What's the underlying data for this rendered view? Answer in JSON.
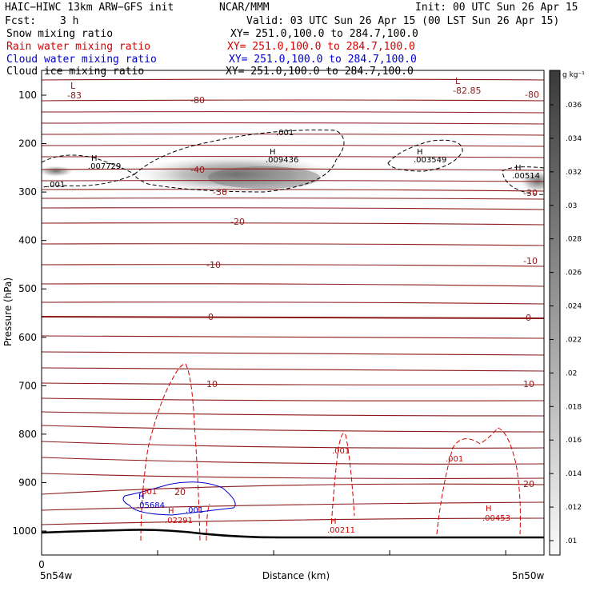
{
  "header": {
    "model": "HAIC−HIWC 13km ARW−GFS init",
    "org": "NCAR/MMM",
    "init": "Init: 00 UTC Sun 26 Apr 15",
    "fcst_label": "Fcst:",
    "fcst_value": "3 h",
    "valid": "Valid: 03 UTC Sun 26 Apr 15 (00 LST Sun 26 Apr 15)"
  },
  "fields": [
    {
      "name": "Snow mixing ratio",
      "xy": "XY= 251.0,100.0 to 284.7,100.0",
      "color": "#000000"
    },
    {
      "name": "Rain water mixing ratio",
      "xy": "XY= 251.0,100.0 to 284.7,100.0",
      "color": "#d40000"
    },
    {
      "name": "Cloud water mixing ratio",
      "xy": "XY= 251.0,100.0 to 284.7,100.0",
      "color": "#0000cc"
    },
    {
      "name": "Cloud ice mixing ratio",
      "xy": "XY= 251.0,100.0 to 284.7,100.0",
      "color": "#000000"
    }
  ],
  "colors": {
    "temperature": "#8b1a1a",
    "rain": "#d40000",
    "cloud_water": "#0000cc",
    "snow": "#000000",
    "terrain": "#000000"
  },
  "chart_data": {
    "type": "cross-section",
    "xlabel": "Distance (km)",
    "ylabel": "Pressure (hPa)",
    "x_tick_label": "0",
    "x_endpoints": [
      "5n54w",
      "5n50w"
    ],
    "ylim": [
      1050,
      50
    ],
    "y_ticks": [
      100,
      200,
      300,
      400,
      500,
      600,
      700,
      800,
      900,
      1000
    ],
    "colorbar": {
      "units": "g kg⁻¹",
      "ticks": [
        ".036",
        ".034",
        ".032",
        ".03",
        ".028",
        ".026",
        ".024",
        ".022",
        ".02",
        ".018",
        ".016",
        ".014",
        ".012",
        ".01"
      ]
    },
    "temperature_contours": [
      {
        "value": "-83",
        "label": "L",
        "pressure": 85
      },
      {
        "value": "-82.85",
        "label": "L",
        "pressure": 85
      },
      {
        "value": "-80",
        "pressure": 108
      },
      {
        "value": "-40",
        "pressure": 262
      },
      {
        "value": "-30",
        "pressure": 292
      },
      {
        "value": "-20",
        "pressure": 370
      },
      {
        "value": "-10",
        "pressure": 460
      },
      {
        "value": "0",
        "pressure": 562
      },
      {
        "value": "10",
        "pressure": 720
      },
      {
        "value": "20",
        "pressure": 924
      }
    ],
    "extrema": [
      {
        "type": "H",
        "value": ".007729",
        "field": "Cloud ice mixing ratio"
      },
      {
        "type": "H",
        "value": ".009436",
        "field": "Cloud ice mixing ratio"
      },
      {
        "type": "H",
        "value": ".003549",
        "field": "Cloud ice mixing ratio"
      },
      {
        "type": "H",
        "value": ".00514",
        "field": "Cloud ice mixing ratio"
      },
      {
        "type": "H",
        "value": ".05684",
        "field": "Cloud water mixing ratio"
      },
      {
        "type": "H",
        "value": ".02291",
        "field": "Rain water mixing ratio"
      },
      {
        "type": "H",
        "value": ".00211",
        "field": "Rain water mixing ratio"
      },
      {
        "type": "H",
        "value": ".00453",
        "field": "Rain water mixing ratio"
      }
    ],
    "contour_labels": [
      {
        "value": ".001",
        "field": "Cloud ice mixing ratio"
      },
      {
        "value": ".001",
        "field": "Cloud water mixing ratio"
      }
    ]
  }
}
